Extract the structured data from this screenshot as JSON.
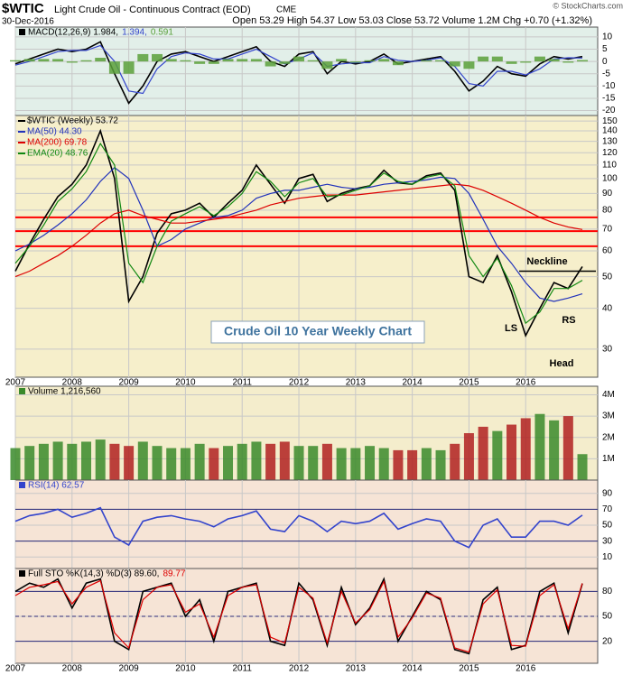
{
  "header": {
    "symbol": "$WTIC",
    "name": "Light Crude Oil - Continuous Contract (EOD)",
    "exchange": "CME",
    "date": "30-Dec-2016",
    "quote": "Open 53.29 High 54.37 Low 53.03 Close 53.72 Volume 1.2M Chg +0.70 (+1.32%)",
    "credit": "© StockCharts.com"
  },
  "chart_data": [
    {
      "type": "line",
      "x": [
        2007,
        2007.25,
        2007.5,
        2007.75,
        2008,
        2008.25,
        2008.5,
        2008.75,
        2009,
        2009.25,
        2009.5,
        2009.75,
        2010,
        2010.25,
        2010.5,
        2010.75,
        2011,
        2011.25,
        2011.5,
        2011.75,
        2012,
        2012.25,
        2012.5,
        2012.75,
        2013,
        2013.25,
        2013.5,
        2013.75,
        2014,
        2014.25,
        2014.5,
        2014.75,
        2015,
        2015.25,
        2015.5,
        2015.75,
        2016,
        2016.25,
        2016.5,
        2016.75,
        2017
      ],
      "xlim": [
        2007,
        2017.27
      ],
      "ylim": [
        -22,
        14
      ],
      "yticks": [
        -20,
        -15,
        -10,
        -5,
        0,
        5,
        10
      ],
      "grid": true,
      "series": [
        {
          "name": "MACD(12,26,9) 1.984,",
          "color": "#000000",
          "values": [
            -1,
            1,
            3,
            5,
            4,
            5,
            8,
            -5,
            -17,
            -10,
            0,
            3,
            4,
            2,
            0,
            2,
            4,
            6,
            0,
            -2,
            3,
            4,
            -5,
            0,
            -1,
            0,
            3,
            -1,
            0,
            1,
            2,
            -4,
            -12,
            -8,
            -2,
            -5,
            -6,
            -1,
            2,
            1,
            1.984
          ]
        },
        {
          "name": "1.394,",
          "color": "#3344cc",
          "values": [
            -1.5,
            0,
            2,
            4,
            4.5,
            4.5,
            6.5,
            0,
            -12,
            -13,
            -3,
            2,
            3.5,
            3,
            1,
            1,
            3,
            5,
            2,
            -1,
            1,
            3.5,
            -2,
            -1,
            -0.5,
            -0.5,
            2,
            0.5,
            0,
            0.5,
            1.5,
            -2,
            -9,
            -10,
            -4,
            -4,
            -5.5,
            -3,
            1,
            1.5,
            1.394
          ]
        },
        {
          "name": "0.591",
          "color": "#5aa03a",
          "type": "bar",
          "values": [
            0.5,
            1,
            1,
            1,
            -0.5,
            0.5,
            1.5,
            -5,
            -5,
            3,
            3,
            1,
            0.5,
            -1,
            -1,
            1,
            1,
            1,
            -2,
            -1,
            2,
            0.5,
            -3,
            1,
            -0.5,
            0.5,
            1,
            -1.5,
            0,
            0.5,
            0.5,
            -2,
            -3,
            2,
            2,
            -1,
            -0.5,
            2,
            1,
            -0.5,
            0.591
          ]
        }
      ]
    },
    {
      "type": "line",
      "log_scale": true,
      "x": [
        2007,
        2007.25,
        2007.5,
        2007.75,
        2008,
        2008.25,
        2008.5,
        2008.75,
        2009,
        2009.25,
        2009.5,
        2009.75,
        2010,
        2010.25,
        2010.5,
        2010.75,
        2011,
        2011.25,
        2011.5,
        2011.75,
        2012,
        2012.25,
        2012.5,
        2012.75,
        2013,
        2013.25,
        2013.5,
        2013.75,
        2014,
        2014.25,
        2014.5,
        2014.75,
        2015,
        2015.25,
        2015.5,
        2015.75,
        2016,
        2016.25,
        2016.5,
        2016.75,
        2017
      ],
      "xlim": [
        2007,
        2017.27
      ],
      "ylim": [
        24.6,
        156
      ],
      "yticks": [
        30,
        40,
        50,
        60,
        70,
        80,
        90,
        100,
        110,
        120,
        130,
        140,
        150
      ],
      "xticks": [
        2007,
        2008,
        2009,
        2010,
        2011,
        2012,
        2013,
        2014,
        2015,
        2016
      ],
      "grid": true,
      "series": [
        {
          "name": "$WTIC (Weekly) 53.72",
          "color": "#000000",
          "values": [
            52,
            63,
            75,
            88,
            96,
            110,
            140,
            100,
            42,
            50,
            68,
            78,
            80,
            84,
            76,
            84,
            92,
            110,
            96,
            84,
            100,
            103,
            85,
            90,
            93,
            95,
            106,
            97,
            96,
            102,
            104,
            92,
            50,
            48,
            58,
            45,
            33,
            40,
            48,
            46,
            53.72
          ]
        },
        {
          "name": "MA(50) 44.30",
          "color": "#2233bb",
          "values": [
            60,
            63,
            67,
            72,
            78,
            86,
            98,
            108,
            100,
            80,
            62,
            65,
            70,
            73,
            76,
            77,
            80,
            87,
            90,
            92,
            92,
            94,
            96,
            94,
            93,
            94,
            96,
            97,
            98,
            99,
            101,
            100,
            90,
            75,
            62,
            55,
            48,
            43,
            42,
            43,
            44.3
          ]
        },
        {
          "name": "MA(200) 69.78",
          "color": "#dd0000",
          "values": [
            50,
            52,
            55,
            58,
            62,
            67,
            73,
            78,
            80,
            77,
            75,
            73,
            73,
            74,
            75,
            76,
            78,
            80,
            83,
            85,
            87,
            88,
            89,
            89,
            89,
            90,
            91,
            92,
            93,
            94,
            95,
            96,
            95,
            92,
            88,
            84,
            80,
            76,
            73,
            71,
            69.78
          ]
        },
        {
          "name": "EMA(20) 48.76",
          "color": "#118811",
          "values": [
            55,
            62,
            72,
            85,
            93,
            105,
            128,
            110,
            55,
            48,
            62,
            74,
            78,
            82,
            77,
            82,
            90,
            105,
            98,
            88,
            97,
            100,
            88,
            89,
            92,
            95,
            104,
            98,
            96,
            101,
            103,
            95,
            58,
            50,
            57,
            47,
            36,
            39,
            46,
            46,
            48.76
          ]
        }
      ],
      "hlines": [
        76,
        69,
        62
      ],
      "hline_color": "#ff0000",
      "neckline": 52,
      "annotations": [
        "Crude Oil 10 Year Weekly Chart",
        "Neckline",
        "LS",
        "Head",
        "RS"
      ]
    },
    {
      "type": "bar",
      "x": [
        2007,
        2007.25,
        2007.5,
        2007.75,
        2008,
        2008.25,
        2008.5,
        2008.75,
        2009,
        2009.25,
        2009.5,
        2009.75,
        2010,
        2010.25,
        2010.5,
        2010.75,
        2011,
        2011.25,
        2011.5,
        2011.75,
        2012,
        2012.25,
        2012.5,
        2012.75,
        2013,
        2013.25,
        2013.5,
        2013.75,
        2014,
        2014.25,
        2014.5,
        2014.75,
        2015,
        2015.25,
        2015.5,
        2015.75,
        2016,
        2016.25,
        2016.5,
        2016.75,
        2017
      ],
      "xlim": [
        2007,
        2017.27
      ],
      "ylim": [
        0,
        4400000
      ],
      "yticks": [
        {
          "value": 1000000,
          "label": "1M"
        },
        {
          "value": 2000000,
          "label": "2M"
        },
        {
          "value": 3000000,
          "label": "3M"
        },
        {
          "value": 4000000,
          "label": "4M"
        }
      ],
      "grid": true,
      "series": [
        {
          "name": "Volume 1,216,560",
          "values": [
            1500000,
            1600000,
            1700000,
            1800000,
            1700000,
            1800000,
            1900000,
            1700000,
            1600000,
            1800000,
            1600000,
            1500000,
            1500000,
            1700000,
            1500000,
            1600000,
            1700000,
            1800000,
            1700000,
            1800000,
            1600000,
            1600000,
            1700000,
            1500000,
            1500000,
            1600000,
            1500000,
            1400000,
            1400000,
            1500000,
            1400000,
            1700000,
            2200000,
            2500000,
            2300000,
            2600000,
            2900000,
            3100000,
            2800000,
            3000000,
            1216560
          ],
          "colors": [
            "#3a8a2a",
            "#3a8a2a",
            "#3a8a2a",
            "#3a8a2a",
            "#3a8a2a",
            "#3a8a2a",
            "#3a8a2a",
            "#b02020",
            "#b02020",
            "#3a8a2a",
            "#3a8a2a",
            "#3a8a2a",
            "#3a8a2a",
            "#3a8a2a",
            "#b02020",
            "#3a8a2a",
            "#3a8a2a",
            "#3a8a2a",
            "#b02020",
            "#b02020",
            "#3a8a2a",
            "#3a8a2a",
            "#b02020",
            "#3a8a2a",
            "#3a8a2a",
            "#3a8a2a",
            "#3a8a2a",
            "#b02020",
            "#b02020",
            "#3a8a2a",
            "#3a8a2a",
            "#b02020",
            "#b02020",
            "#b02020",
            "#3a8a2a",
            "#b02020",
            "#b02020",
            "#3a8a2a",
            "#3a8a2a",
            "#b02020",
            "#3a8a2a"
          ]
        }
      ]
    },
    {
      "type": "line",
      "x": [
        2007,
        2007.25,
        2007.5,
        2007.75,
        2008,
        2008.25,
        2008.5,
        2008.75,
        2009,
        2009.25,
        2009.5,
        2009.75,
        2010,
        2010.25,
        2010.5,
        2010.75,
        2011,
        2011.25,
        2011.5,
        2011.75,
        2012,
        2012.25,
        2012.5,
        2012.75,
        2013,
        2013.25,
        2013.5,
        2013.75,
        2014,
        2014.25,
        2014.5,
        2014.75,
        2015,
        2015.25,
        2015.5,
        2015.75,
        2016,
        2016.25,
        2016.5,
        2016.75,
        2017
      ],
      "xlim": [
        2007,
        2017.27
      ],
      "ylim": [
        -4.5,
        106.8
      ],
      "yticks": [
        10,
        30,
        50,
        70,
        90
      ],
      "reference_lines": [
        70,
        30
      ],
      "grid": true,
      "series": [
        {
          "name": "RSI(14) 62.57",
          "color": "#3344cc",
          "values": [
            55,
            62,
            65,
            70,
            60,
            65,
            72,
            35,
            25,
            55,
            60,
            62,
            58,
            55,
            48,
            58,
            62,
            68,
            45,
            42,
            62,
            55,
            42,
            55,
            52,
            55,
            65,
            45,
            52,
            58,
            55,
            30,
            22,
            50,
            58,
            35,
            35,
            55,
            55,
            50,
            62.57
          ]
        }
      ]
    },
    {
      "type": "line",
      "x": [
        2007,
        2007.25,
        2007.5,
        2007.75,
        2008,
        2008.25,
        2008.5,
        2008.75,
        2009,
        2009.25,
        2009.5,
        2009.75,
        2010,
        2010.25,
        2010.5,
        2010.75,
        2011,
        2011.25,
        2011.5,
        2011.75,
        2012,
        2012.25,
        2012.5,
        2012.75,
        2013,
        2013.25,
        2013.5,
        2013.75,
        2014,
        2014.25,
        2014.5,
        2014.75,
        2015,
        2015.25,
        2015.5,
        2015.75,
        2016,
        2016.25,
        2016.5,
        2016.75,
        2017
      ],
      "xlim": [
        2007,
        2017.27
      ],
      "ylim": [
        -6.5,
        107.6
      ],
      "yticks": [
        20,
        50,
        80
      ],
      "reference_lines": [
        80,
        50,
        20
      ],
      "xticks": [
        2007,
        2008,
        2009,
        2010,
        2011,
        2012,
        2013,
        2014,
        2015,
        2016
      ],
      "grid": true,
      "series": [
        {
          "name": "Full STO %K(14,3) %D(3) 89.60,",
          "color": "#000000",
          "values": [
            80,
            90,
            85,
            95,
            60,
            90,
            95,
            20,
            10,
            80,
            85,
            90,
            50,
            70,
            20,
            80,
            85,
            90,
            20,
            15,
            90,
            70,
            15,
            85,
            40,
            60,
            95,
            20,
            50,
            80,
            70,
            10,
            5,
            70,
            85,
            10,
            15,
            80,
            90,
            30,
            89.6
          ]
        },
        {
          "name": "89.77",
          "color": "#dd0000",
          "values": [
            75,
            85,
            88,
            92,
            65,
            85,
            93,
            30,
            12,
            70,
            85,
            88,
            55,
            65,
            25,
            75,
            85,
            88,
            25,
            18,
            85,
            72,
            18,
            80,
            42,
            58,
            92,
            25,
            48,
            78,
            72,
            12,
            7,
            65,
            82,
            15,
            14,
            75,
            88,
            35,
            89.77
          ]
        }
      ]
    }
  ]
}
